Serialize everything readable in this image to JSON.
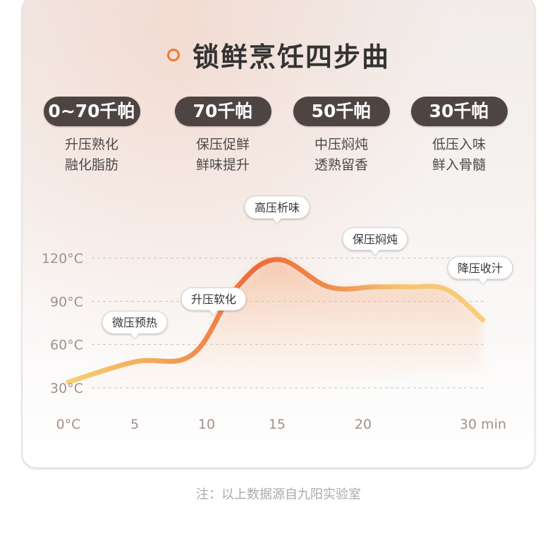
{
  "title": "锁鲜烹饪四步曲",
  "steps": [
    {
      "pressure": "0~70千帕",
      "line1": "升压熟化",
      "line2": "融化脂肪"
    },
    {
      "pressure": "70千帕",
      "line1": "保压促鲜",
      "line2": "鲜味提升"
    },
    {
      "pressure": "50千帕",
      "line1": "中压焖炖",
      "line2": "透熟留香"
    },
    {
      "pressure": "30千帕",
      "line1": "低压入味",
      "line2": "鲜入骨髓"
    }
  ],
  "footnote": "注：以上数据源自九阳实验室",
  "colors": {
    "accent": "#f07a2e",
    "pill": "#4e4542"
  },
  "chart_data": {
    "type": "line",
    "xlabel": "",
    "ylabel": "",
    "x_ticks": [
      "0°C",
      "5",
      "10",
      "15",
      "20",
      "30 min"
    ],
    "y_ticks": [
      "30°C",
      "60°C",
      "90°C",
      "120°C"
    ],
    "series": [
      {
        "x": [
          0,
          5,
          9,
          12,
          15,
          18,
          21,
          24,
          27,
          30
        ],
        "y": [
          34,
          48,
          53,
          98,
          119,
          100,
          100,
          100,
          98,
          77
        ]
      }
    ],
    "annotations": [
      {
        "text": "微压预热",
        "x": 5,
        "y": 48
      },
      {
        "text": "升压软化",
        "x": 10.5,
        "y": 72
      },
      {
        "text": "高压析味",
        "x": 15,
        "y": 119
      },
      {
        "text": "保压焖炖",
        "x": 21,
        "y": 100
      },
      {
        "text": "降压收汁",
        "x": 30,
        "y": 77
      }
    ],
    "grid": true
  }
}
